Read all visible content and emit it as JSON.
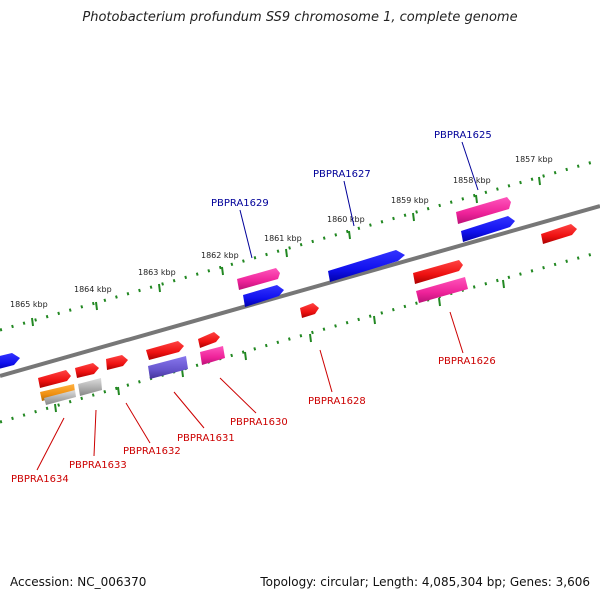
{
  "title": "Photobacterium profundum SS9 chromosome 1, complete genome",
  "footer": {
    "accession_label": "Accession:",
    "accession": "NC_006370",
    "topology_label": "Topology:",
    "topology": "circular",
    "length_label": "Length:",
    "length": "4,085,304 bp",
    "genes_label": "Genes:",
    "genes": "3,606"
  },
  "colors": {
    "red": "#ee1111",
    "blue": "#1111ee",
    "pink": "#ee2299",
    "orange": "#f09010",
    "gray": "#aaaaaa",
    "purple": "#6655cc",
    "tick": "#228822",
    "backbone": "#777777",
    "label_top": "#000099",
    "label_bottom": "#cc0000"
  },
  "scale": {
    "unit": "kbp",
    "labels": [
      "1857 kbp",
      "1858 kbp",
      "1859 kbp",
      "1860 kbp",
      "1861 kbp",
      "1862 kbp",
      "1863 kbp",
      "1864 kbp",
      "1865 kbp"
    ]
  },
  "labels_top": [
    "PBPRA1625",
    "PBPRA1627",
    "PBPRA1629"
  ],
  "labels_bottom": [
    "PBPRA1626",
    "PBPRA1628",
    "PBPRA1630",
    "PBPRA1631",
    "PBPRA1632",
    "PBPRA1633",
    "PBPRA1634"
  ]
}
